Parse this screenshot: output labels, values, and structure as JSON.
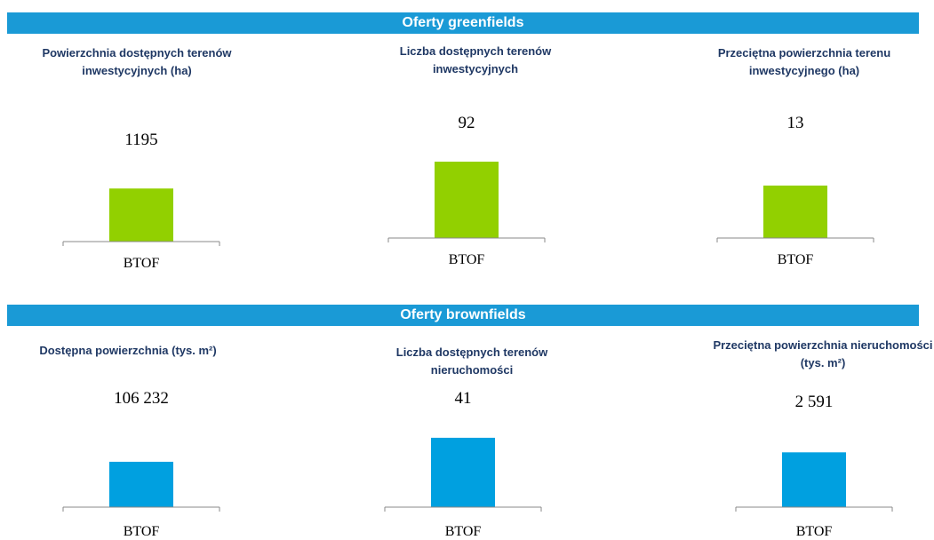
{
  "sections": [
    {
      "title": "Oferty greenfields"
    },
    {
      "title": "Oferty  brownfields"
    }
  ],
  "chart_data": [
    {
      "type": "bar",
      "title": "Powierzchnia dostępnych terenów inwestycyjnych (ha)",
      "categories": [
        "BTOF"
      ],
      "values": [
        1195
      ],
      "color": "#92d000",
      "ylim": [
        0,
        2000
      ]
    },
    {
      "type": "bar",
      "title": "Liczba dostępnych terenów inwestycyjnych",
      "categories": [
        "BTOF"
      ],
      "values": [
        92
      ],
      "color": "#92d000",
      "ylim": [
        0,
        107
      ]
    },
    {
      "type": "bar",
      "title": "Przeciętna powierzchnia  terenu inwestycyjnego (ha)",
      "categories": [
        "BTOF"
      ],
      "values": [
        13
      ],
      "color": "#92d000",
      "ylim": [
        0,
        22
      ]
    },
    {
      "type": "bar",
      "title": "Dostępna  powierzchnia (tys. m²)",
      "categories": [
        "BTOF"
      ],
      "values": [
        106232
      ],
      "value_labels": [
        "106 232"
      ],
      "color": "#00a0e0",
      "ylim": [
        0,
        208000
      ]
    },
    {
      "type": "bar",
      "title": "Liczba dostępnych terenów nieruchomości",
      "categories": [
        "BTOF"
      ],
      "values": [
        41
      ],
      "color": "#00a0e0",
      "ylim": [
        0,
        52.5
      ]
    },
    {
      "type": "bar",
      "title": "Przeciętna powierzchnia nieruchomości (tys. m²)",
      "categories": [
        "BTOF"
      ],
      "values": [
        2591
      ],
      "value_labels": [
        "2 591"
      ],
      "color": "#00a0e0",
      "ylim": [
        0,
        4200
      ]
    }
  ]
}
